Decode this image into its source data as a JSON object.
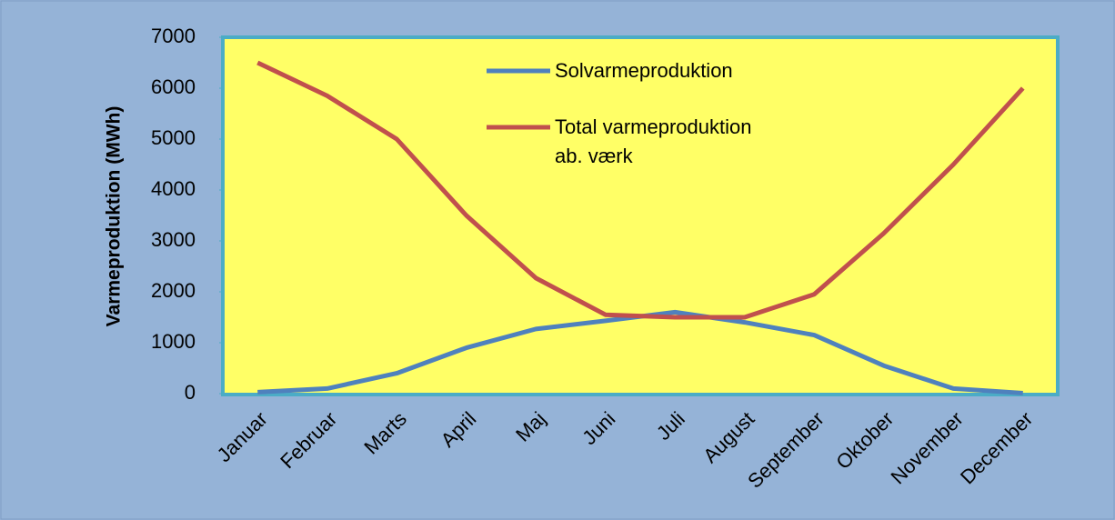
{
  "chart_data": {
    "type": "line",
    "y_label": "Varmeproduktion (MWh)",
    "categories": [
      "Januar",
      "Februar",
      "Marts",
      "April",
      "Maj",
      "Juni",
      "Juli",
      "August",
      "September",
      "Oktober",
      "November",
      "December"
    ],
    "series": [
      {
        "name": "Solvarmeproduktion",
        "color": "#4f81bd",
        "values": [
          30,
          100,
          400,
          900,
          1270,
          1430,
          1600,
          1400,
          1150,
          550,
          100,
          10
        ]
      },
      {
        "name": "Total varmeproduktion\nab. værk",
        "color": "#c0504d",
        "values": [
          6500,
          5850,
          5000,
          3500,
          2270,
          1550,
          1500,
          1500,
          1950,
          3150,
          4500,
          6000
        ]
      }
    ],
    "ylim": [
      0,
      7000
    ],
    "yticks": [
      0,
      1000,
      2000,
      3000,
      4000,
      5000,
      6000,
      7000
    ]
  }
}
